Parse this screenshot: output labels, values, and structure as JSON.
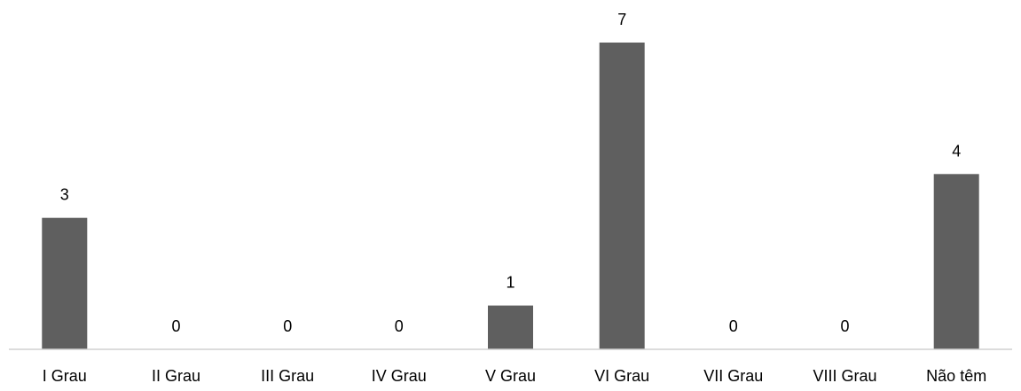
{
  "chart_data": {
    "type": "bar",
    "categories": [
      "I Grau",
      "II Grau",
      "III Grau",
      "IV Grau",
      "V Grau",
      "VI Grau",
      "VII Grau",
      "VIII Grau",
      "Não têm"
    ],
    "values": [
      3,
      0,
      0,
      0,
      1,
      7,
      0,
      0,
      4
    ],
    "title": "",
    "xlabel": "",
    "ylabel": "",
    "ylim": [
      0,
      7
    ],
    "grid": false,
    "legend": "none",
    "data_labels": true,
    "colors": {
      "bar": "#5f5f5f",
      "axis": "#d0d0d0",
      "text": "#000000"
    }
  }
}
